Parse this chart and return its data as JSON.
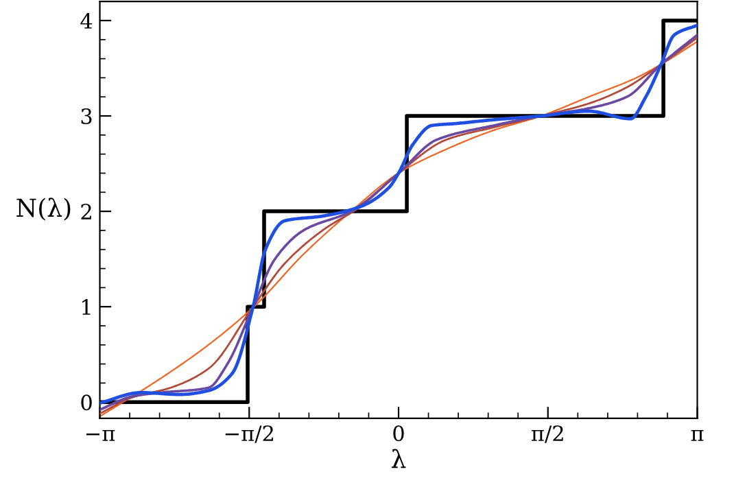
{
  "chart_data": {
    "type": "line",
    "xlabel": "λ",
    "ylabel": "N(λ)",
    "xlim": [
      -3.1416,
      3.1416
    ],
    "ylim": [
      -0.17,
      4.2
    ],
    "xticks": [
      {
        "value": -3.1416,
        "label": "−π"
      },
      {
        "value": -1.5708,
        "label": "−π/2"
      },
      0,
      {
        "value": 1.5708,
        "label": "π/2"
      },
      {
        "value": 3.1416,
        "label": "π"
      }
    ],
    "yticks": [
      0,
      1,
      2,
      3,
      4
    ],
    "grid": false,
    "legend": false,
    "marker": "none",
    "series": [
      {
        "color": "#f26522",
        "x": [
          -3.1416,
          -2.5,
          -2,
          -1.5,
          -1,
          -0.5,
          0,
          0.5,
          1,
          1.5,
          2,
          2.5,
          2.76,
          3.1416
        ],
        "values": [
          -0.15,
          0.25,
          0.6,
          1.02,
          1.55,
          2.0,
          2.4,
          2.65,
          2.85,
          3.0,
          3.2,
          3.4,
          3.54,
          3.78
        ]
      },
      {
        "color": "#b04a3a",
        "x": [
          -3.1416,
          -2.8,
          -2.4,
          -2,
          -1.53,
          -1.2,
          -0.8,
          -0.4,
          0,
          0.5,
          1,
          1.5,
          2,
          2.4,
          2.76,
          3.1416
        ],
        "values": [
          -0.12,
          0.05,
          0.15,
          0.35,
          1.0,
          1.45,
          1.8,
          2.05,
          2.4,
          2.75,
          2.88,
          3.0,
          3.13,
          3.3,
          3.54,
          3.82
        ]
      },
      {
        "color": "#6a4aa0",
        "x": [
          -3.1416,
          -2.8,
          -2.5,
          -2,
          -1.8,
          -1.53,
          -1.3,
          -1.0,
          -0.5,
          0,
          0.4,
          1,
          1.5,
          2,
          2.4,
          2.76,
          3.1416
        ],
        "values": [
          -0.08,
          0.06,
          0.1,
          0.15,
          0.4,
          1.0,
          1.5,
          1.8,
          2.0,
          2.4,
          2.75,
          2.9,
          3.0,
          3.08,
          3.2,
          3.54,
          3.85
        ]
      },
      {
        "color": "#1f4fe0",
        "x": [
          -3.1416,
          -2.71,
          -2.3,
          -2.0,
          -1.75,
          -1.53,
          -1.4,
          -1.2,
          -0.8,
          -0.4,
          -0.1,
          0,
          0.15,
          0.35,
          0.6,
          1.0,
          1.5,
          2.0,
          2.44,
          2.6,
          2.76,
          2.9,
          3.1416
        ],
        "values": [
          -0.01,
          0.1,
          0.08,
          0.12,
          0.3,
          1.0,
          1.6,
          1.9,
          1.95,
          2.05,
          2.25,
          2.4,
          2.7,
          2.9,
          2.92,
          2.96,
          3.0,
          3.05,
          2.97,
          3.2,
          3.54,
          3.85,
          3.95
        ]
      },
      {
        "type": "step",
        "color": "#000000",
        "x": [
          -3.1416,
          -1.587,
          -1.414,
          0.087,
          2.785,
          3.1416
        ],
        "values": [
          0,
          1,
          2,
          3,
          4,
          4
        ]
      }
    ]
  }
}
